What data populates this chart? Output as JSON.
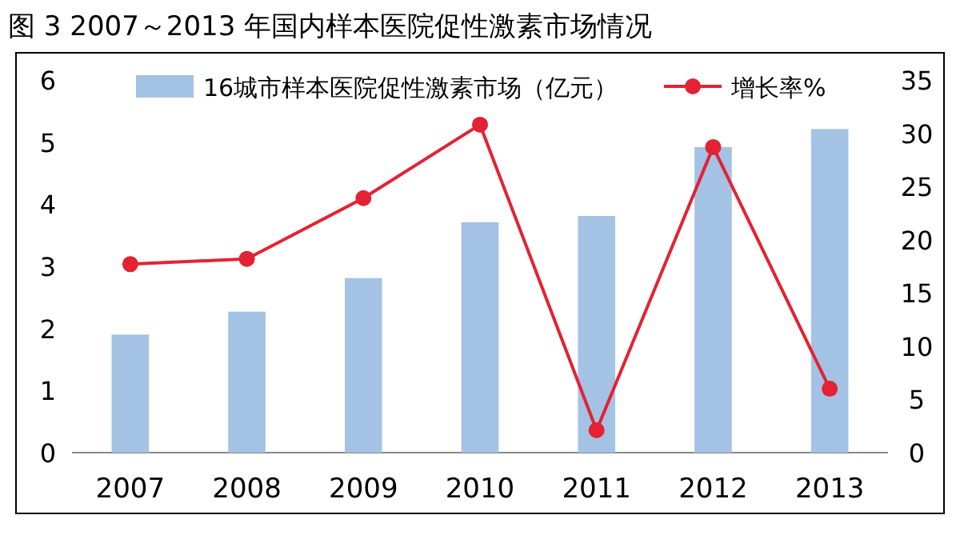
{
  "chart_data": {
    "type": "bar",
    "title": "图 3  2007～2013 年国内样本医院促性激素市场情况",
    "categories": [
      "2007",
      "2008",
      "2009",
      "2010",
      "2011",
      "2012",
      "2013"
    ],
    "series": [
      {
        "name": "16城市样本医院促性激素市场（亿元）",
        "color": "#a4c2e4",
        "values": [
          1.9,
          2.27,
          2.81,
          3.71,
          3.81,
          4.92,
          5.21
        ]
      },
      {
        "name": "增长率%",
        "type": "line",
        "axis": "y2",
        "color": "#e32233",
        "marker": "circle",
        "values": [
          17.7,
          18.2,
          23.9,
          30.8,
          2.1,
          28.7,
          6.0
        ]
      }
    ],
    "ylim": [
      0,
      6
    ],
    "yticks": [
      0,
      1,
      2,
      3,
      4,
      5,
      6
    ],
    "y2lim": [
      0,
      35
    ],
    "y2ticks": [
      0,
      5,
      10,
      15,
      20,
      25,
      30,
      35
    ],
    "grid": false,
    "legend": "top"
  }
}
